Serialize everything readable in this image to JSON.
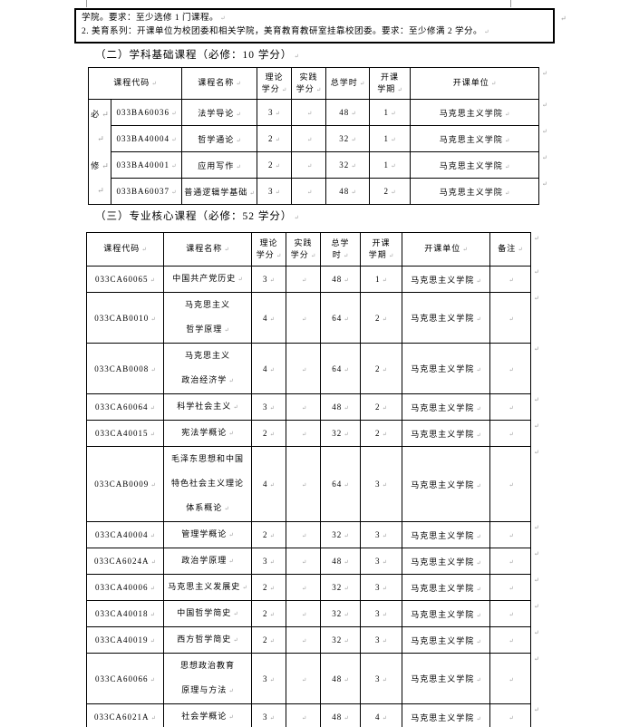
{
  "marks": {
    "end": "↵"
  },
  "note": {
    "lines": [
      "学院。要求：至少选修 1 门课程。",
      "2. 美育系列：开课单位为校团委和相关学院，美育教育教研室挂靠校团委。要求：至少修满 2 学分。"
    ]
  },
  "sections": [
    {
      "heading": "（二）学科基础课程（必修：10 学分）",
      "table": {
        "side_lines": [
          "必",
          "",
          "修",
          ""
        ],
        "headers": [
          "课程代码",
          "课程名称",
          "理论\n学分",
          "实践\n学分",
          "总学时",
          "开课\n学期",
          "开课单位"
        ],
        "rows": [
          [
            "033BA60036",
            "法学导论",
            "3",
            "",
            "48",
            "1",
            "马克思主义学院"
          ],
          [
            "033BA40004",
            "哲学通论",
            "2",
            "",
            "32",
            "1",
            "马克思主义学院"
          ],
          [
            "033BA40001",
            "应用写作",
            "2",
            "",
            "32",
            "1",
            "马克思主义学院"
          ],
          [
            "033BA60037",
            "普通逻辑学基础",
            "3",
            "",
            "48",
            "2",
            "马克思主义学院"
          ]
        ]
      }
    },
    {
      "heading": "（三）专业核心课程（必修：52 学分）",
      "table": {
        "headers": [
          "课程代码",
          "课程名称",
          "理论\n学分",
          "实践\n学分",
          "总学\n时",
          "开课\n学期",
          "开课单位",
          "备注"
        ],
        "rows": [
          [
            "033CA60065",
            "中国共产党历史",
            "3",
            "",
            "48",
            "1",
            "马克思主义学院",
            ""
          ],
          [
            "033CAB0010",
            "马克思主义\n哲学原理",
            "4",
            "",
            "64",
            "2",
            "马克思主义学院",
            ""
          ],
          [
            "033CAB0008",
            "马克思主义\n政治经济学",
            "4",
            "",
            "64",
            "2",
            "马克思主义学院",
            ""
          ],
          [
            "033CA60064",
            "科学社会主义",
            "3",
            "",
            "48",
            "2",
            "马克思主义学院",
            ""
          ],
          [
            "033CA40015",
            "宪法学概论",
            "2",
            "",
            "32",
            "2",
            "马克思主义学院",
            ""
          ],
          [
            "033CAB0009",
            "毛泽东思想和中国\n特色社会主义理论\n体系概论",
            "4",
            "",
            "64",
            "3",
            "马克思主义学院",
            ""
          ],
          [
            "033CA40004",
            "管理学概论",
            "2",
            "",
            "32",
            "3",
            "马克思主义学院",
            ""
          ],
          [
            "033CA6024A",
            "政治学原理",
            "3",
            "",
            "48",
            "3",
            "马克思主义学院",
            ""
          ],
          [
            "033CA40006",
            "马克思主义发展史",
            "2",
            "",
            "32",
            "3",
            "马克思主义学院",
            ""
          ],
          [
            "033CA40018",
            "中国哲学简史",
            "2",
            "",
            "32",
            "3",
            "马克思主义学院",
            ""
          ],
          [
            "033CA40019",
            "西方哲学简史",
            "2",
            "",
            "32",
            "3",
            "马克思主义学院",
            ""
          ],
          [
            "033CA60066",
            "思想政治教育\n原理与方法",
            "3",
            "",
            "48",
            "3",
            "马克思主义学院",
            ""
          ],
          [
            "033CA6021A",
            "社会学概论",
            "3",
            "",
            "48",
            "4",
            "马克思主义学院",
            ""
          ]
        ]
      }
    }
  ]
}
